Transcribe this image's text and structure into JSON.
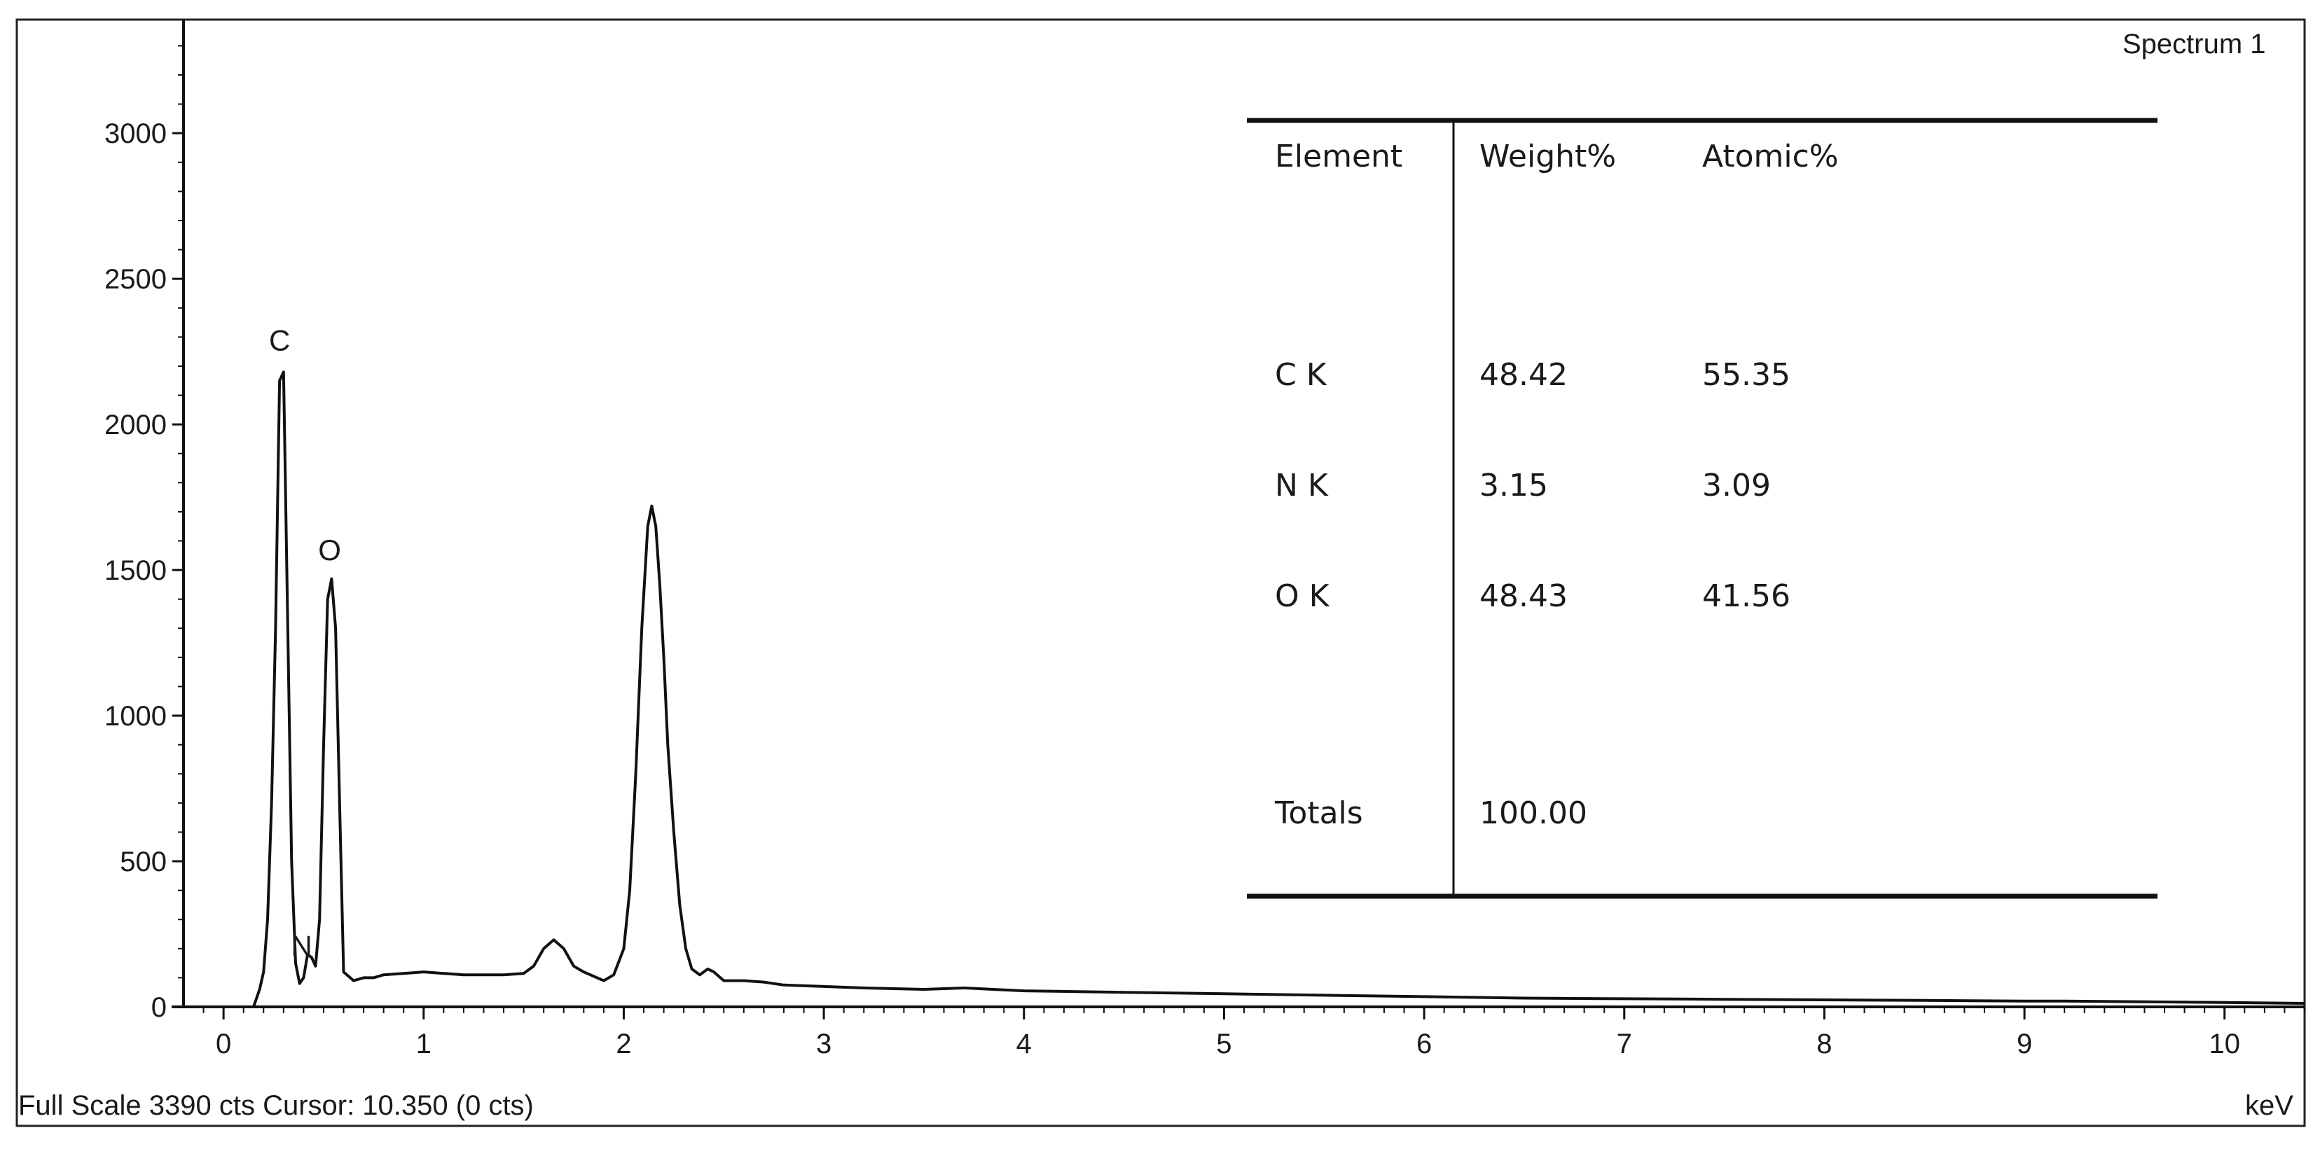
{
  "chart_data": {
    "type": "line",
    "spectrum_label": "Spectrum 1",
    "xlabel": "keV",
    "ylabel": "",
    "xlim": [
      -0.2,
      10.4
    ],
    "ylim": [
      0,
      3390
    ],
    "x_ticks": [
      "0",
      "1",
      "2",
      "3",
      "4",
      "5",
      "6",
      "7",
      "8",
      "9",
      "10"
    ],
    "y_ticks": [
      "0",
      "500",
      "1000",
      "1500",
      "2000",
      "2500",
      "3000"
    ],
    "grid": false,
    "series": [
      {
        "x": [
          0.15,
          0.18,
          0.2,
          0.22,
          0.24,
          0.26,
          0.28,
          0.3,
          0.32,
          0.34,
          0.36,
          0.38,
          0.4,
          0.42,
          0.44,
          0.46,
          0.48,
          0.5,
          0.52,
          0.54,
          0.56,
          0.58,
          0.6,
          0.65,
          0.7,
          0.75,
          0.8,
          0.9,
          1.0,
          1.1,
          1.2,
          1.3,
          1.4,
          1.5,
          1.55,
          1.6,
          1.65,
          1.7,
          1.75,
          1.8,
          1.9,
          1.95,
          2.0,
          2.03,
          2.06,
          2.09,
          2.12,
          2.14,
          2.16,
          2.18,
          2.2,
          2.22,
          2.25,
          2.28,
          2.31,
          2.34,
          2.38,
          2.42,
          2.45,
          2.5,
          2.6,
          2.7,
          2.8,
          3.0,
          3.2,
          3.5,
          3.7,
          4.0,
          4.5,
          5.0,
          5.5,
          6.0,
          6.5,
          7.0,
          7.5,
          8.0,
          8.5,
          9.0,
          9.2,
          9.5,
          10.0,
          10.4
        ],
        "y": [
          0,
          60,
          120,
          300,
          700,
          1300,
          2150,
          2180,
          1350,
          500,
          150,
          80,
          100,
          180,
          170,
          140,
          300,
          900,
          1400,
          1470,
          1300,
          700,
          120,
          90,
          100,
          100,
          110,
          115,
          120,
          115,
          110,
          110,
          110,
          115,
          140,
          200,
          230,
          200,
          140,
          120,
          90,
          110,
          200,
          400,
          800,
          1300,
          1650,
          1720,
          1650,
          1450,
          1200,
          900,
          600,
          350,
          200,
          130,
          110,
          130,
          120,
          90,
          90,
          85,
          75,
          70,
          65,
          60,
          65,
          55,
          50,
          45,
          40,
          35,
          30,
          28,
          26,
          24,
          22,
          20,
          20,
          18,
          15,
          12
        ]
      }
    ],
    "annotations": [
      {
        "text": "C",
        "x": 0.28,
        "y": 2230
      },
      {
        "text": "N",
        "x": 0.39,
        "y": 150
      },
      {
        "text": "O",
        "x": 0.53,
        "y": 1510
      }
    ],
    "table": {
      "headers": [
        "Element",
        "Weight%",
        "Atomic%"
      ],
      "rows": [
        [
          "C K",
          "48.42",
          "55.35"
        ],
        [
          "N K",
          "3.15",
          "3.09"
        ],
        [
          "O K",
          "48.43",
          "41.56"
        ]
      ],
      "totals_label": "Totals",
      "totals_weight": "100.00"
    }
  },
  "status_bar": {
    "text": "Full Scale 3390 cts Cursor: 10.350  (0 cts)"
  }
}
